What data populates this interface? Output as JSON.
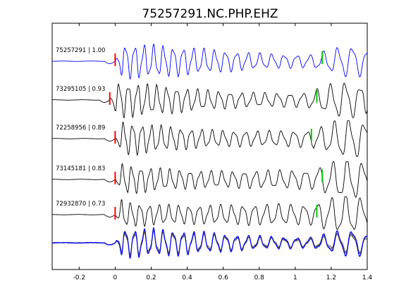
{
  "chart_data": {
    "type": "line",
    "title": "75257291.NC.PHP.EHZ",
    "xlabel": "",
    "ylabel": "",
    "xlim": [
      -0.35,
      1.4
    ],
    "x_ticks": [
      -0.2,
      0,
      0.2,
      0.4,
      0.6,
      0.8,
      1,
      1.2,
      1.4
    ],
    "x_tick_labels": [
      "-0.2",
      "0",
      "0.2",
      "0.4",
      "0.6",
      "0.8",
      "1",
      "1.2",
      "1.4"
    ],
    "grid": false,
    "p_pick_color": "#ff0000",
    "s_pick_color": "#00cc00",
    "reference_color": "#0000ff",
    "other_color": "#000000",
    "series": [
      {
        "name": "75257291",
        "similarity": "1.00",
        "label": "75257291 | 1.00",
        "p_pick": 0.0,
        "s_pick": 1.15,
        "reference": true
      },
      {
        "name": "73295105",
        "similarity": "0.93",
        "label": "73295105 | 0.93",
        "p_pick": -0.03,
        "s_pick": 1.12,
        "reference": false
      },
      {
        "name": "72258956",
        "similarity": "0.89",
        "label": "72258956 | 0.89",
        "p_pick": 0.0,
        "s_pick": 1.09,
        "reference": false
      },
      {
        "name": "73145181",
        "similarity": "0.83",
        "label": "73145181 | 0.83",
        "p_pick": 0.0,
        "s_pick": 1.15,
        "reference": false
      },
      {
        "name": "72932870",
        "similarity": "0.73",
        "label": "72932870 | 0.73",
        "p_pick": 0.0,
        "s_pick": 1.12,
        "reference": false
      }
    ],
    "stack": {
      "name": "overlay of aligned traces"
    }
  }
}
